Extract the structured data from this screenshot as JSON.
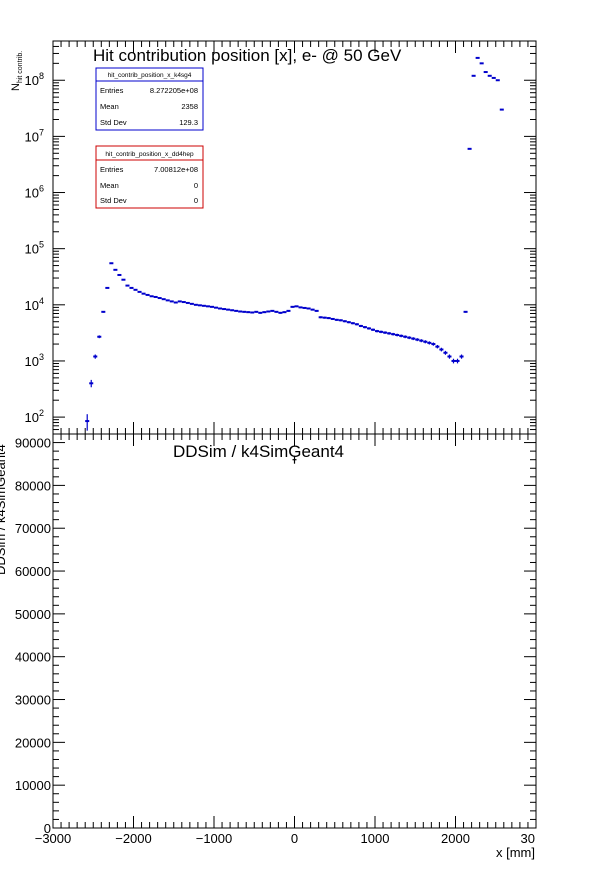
{
  "colors": {
    "k4sg4": "#0000cc",
    "dd4hep": "#cc0000",
    "axis": "#000000",
    "background": "#ffffff"
  },
  "top_title": "Hit contribution position [x],  e- @ 50 GeV",
  "ratio_title": "DDSim / k4SimGeant4",
  "x_axis_label": "x [mm]",
  "top_y_label_main": "N",
  "top_y_label_sub": "hit contrib.",
  "ratio_y_label": "DDSim / k4SimGeant4",
  "top_y_ticks": [
    {
      "mant": "10",
      "exp": "2"
    },
    {
      "mant": "10",
      "exp": "3"
    },
    {
      "mant": "10",
      "exp": "4"
    },
    {
      "mant": "10",
      "exp": "5"
    },
    {
      "mant": "10",
      "exp": "6"
    },
    {
      "mant": "10",
      "exp": "7"
    },
    {
      "mant": "10",
      "exp": "8"
    }
  ],
  "ratio_y_ticks": [
    "0",
    "10000",
    "20000",
    "30000",
    "40000",
    "50000",
    "60000",
    "70000",
    "80000",
    "90000"
  ],
  "x_ticks": [
    "−3000",
    "−2000",
    "−1000",
    "0",
    "1000",
    "2000",
    "30"
  ],
  "stats_boxes": [
    {
      "name": "hit_contrib_position_x_k4sg4",
      "rows": [
        {
          "label": "Entries",
          "value": "8.272205e+08"
        },
        {
          "label": "Mean",
          "value": "2358"
        },
        {
          "label": "Std Dev",
          "value": "129.3"
        }
      ]
    },
    {
      "name": "hit_contrib_position_x_dd4hep",
      "rows": [
        {
          "label": "Entries",
          "value": "7.00812e+08"
        },
        {
          "label": "Mean",
          "value": "0"
        },
        {
          "label": "Std Dev",
          "value": "0"
        }
      ]
    }
  ],
  "chart_data": [
    {
      "type": "scatter",
      "title": "Hit contribution position [x],  e- @ 50 GeV",
      "xlabel": "x [mm]",
      "ylabel": "N hit contrib.",
      "xlim": [
        -3000,
        3000
      ],
      "ylim": [
        50,
        500000000
      ],
      "yscale": "log",
      "grid": false,
      "bin_width": 50,
      "series": [
        {
          "name": "hit_contrib_position_x_k4sg4",
          "x": [
            -2575,
            -2525,
            -2475,
            -2425,
            -2375,
            -2325,
            -2275,
            -2225,
            -2175,
            -2125,
            -2075,
            -2025,
            -1975,
            -1925,
            -1875,
            -1825,
            -1775,
            -1725,
            -1675,
            -1625,
            -1575,
            -1525,
            -1475,
            -1425,
            -1375,
            -1325,
            -1275,
            -1225,
            -1175,
            -1125,
            -1075,
            -1025,
            -975,
            -925,
            -875,
            -825,
            -775,
            -725,
            -675,
            -625,
            -575,
            -525,
            -475,
            -425,
            -375,
            -325,
            -275,
            -225,
            -175,
            -125,
            -75,
            -25,
            25,
            75,
            125,
            175,
            225,
            275,
            325,
            375,
            425,
            475,
            525,
            575,
            625,
            675,
            725,
            775,
            825,
            875,
            925,
            975,
            1025,
            1075,
            1125,
            1175,
            1225,
            1275,
            1325,
            1375,
            1425,
            1475,
            1525,
            1575,
            1625,
            1675,
            1725,
            1775,
            1825,
            1875,
            1925,
            1975,
            2025,
            2075,
            2125,
            2175,
            2225,
            2275,
            2325,
            2375,
            2425,
            2475,
            2525,
            2575
          ],
          "y": [
            85,
            400,
            1200,
            2700,
            7500,
            20000,
            55000,
            42000,
            34000,
            28000,
            22000,
            20000,
            18500,
            17000,
            15800,
            15000,
            14200,
            13800,
            13200,
            12600,
            12000,
            11500,
            11000,
            11500,
            11200,
            10800,
            10400,
            10000,
            9800,
            9600,
            9400,
            9200,
            8900,
            8600,
            8400,
            8200,
            8000,
            7800,
            7600,
            7500,
            7400,
            7300,
            7500,
            7200,
            7400,
            7600,
            7800,
            7500,
            7200,
            7400,
            7800,
            9200,
            9400,
            9000,
            8800,
            8600,
            8200,
            7800,
            6000,
            5900,
            5800,
            5600,
            5400,
            5300,
            5100,
            4900,
            4700,
            4500,
            4200,
            4000,
            3800,
            3600,
            3400,
            3300,
            3200,
            3100,
            3000,
            2900,
            2800,
            2700,
            2600,
            2500,
            2400,
            2300,
            2200,
            2100,
            2000,
            1800,
            1600,
            1400,
            1200,
            1000,
            1000,
            1200,
            7500,
            6000000,
            120000000,
            250000000,
            200000000,
            140000000,
            120000000,
            110000000,
            100000000,
            30000000
          ]
        }
      ]
    },
    {
      "type": "scatter",
      "title": "DDSim / k4SimGeant4",
      "xlabel": "x [mm]",
      "ylabel": "DDSim / k4SimGeant4",
      "xlim": [
        -3000,
        3000
      ],
      "ylim": [
        0,
        92000
      ],
      "grid": false,
      "series": [
        {
          "name": "ratio",
          "x": [
            0
          ],
          "y": [
            86000
          ]
        }
      ]
    }
  ]
}
